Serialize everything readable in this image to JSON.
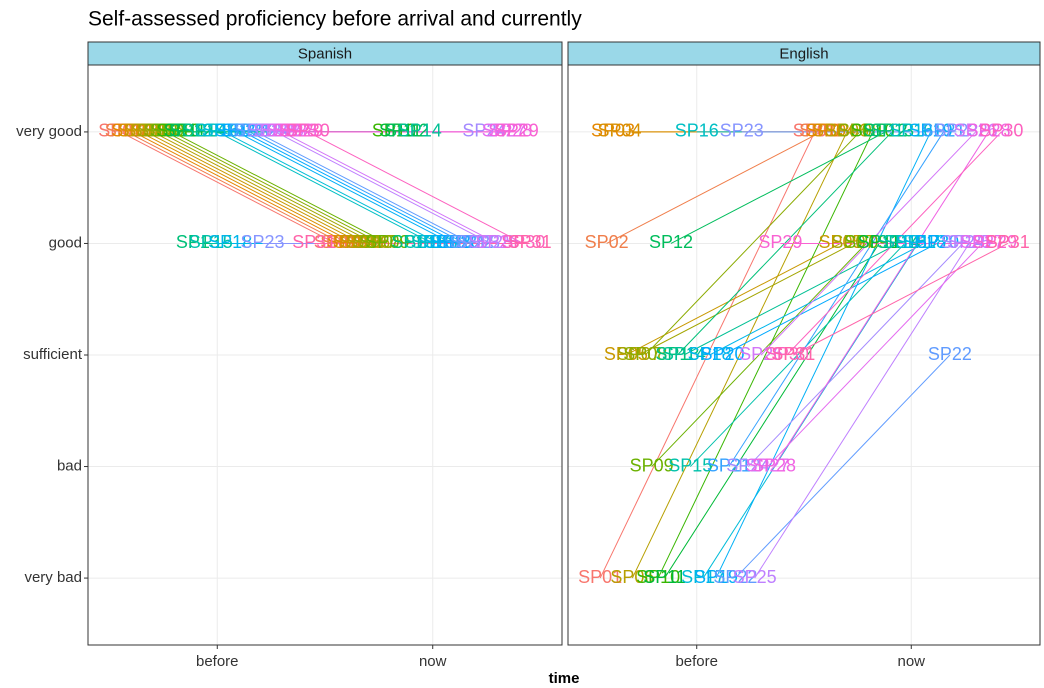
{
  "chart_data": {
    "type": "slope",
    "title": "Self-assessed proficiency before arrival and currently",
    "x_label": "time",
    "categories": [
      "before",
      "now"
    ],
    "ylim": [
      0.4,
      5.6
    ],
    "yticks": [
      {
        "value": 1,
        "label": "very bad"
      },
      {
        "value": 2,
        "label": "bad"
      },
      {
        "value": 3,
        "label": "sufficient"
      },
      {
        "value": 4,
        "label": "good"
      },
      {
        "value": 5,
        "label": "very good"
      }
    ],
    "grid": true,
    "facets": [
      {
        "label": "Spanish",
        "series": [
          {
            "name": "SP01",
            "color": "#F8766D",
            "values": [
              5,
              4
            ]
          },
          {
            "name": "SP02",
            "color": "#F07E4B",
            "values": [
              5,
              4
            ]
          },
          {
            "name": "SP03",
            "color": "#E58700",
            "values": [
              5,
              4
            ]
          },
          {
            "name": "SP04",
            "color": "#D89000",
            "values": [
              5,
              4
            ]
          },
          {
            "name": "SP05",
            "color": "#C99800",
            "values": [
              5,
              4
            ]
          },
          {
            "name": "SP06",
            "color": "#B79F00",
            "values": [
              5,
              4
            ]
          },
          {
            "name": "SP07",
            "color": "#A3A500",
            "values": [
              5,
              4
            ]
          },
          {
            "name": "SP08",
            "color": "#8BAB00",
            "values": [
              5,
              4
            ]
          },
          {
            "name": "SP09",
            "color": "#6BB100",
            "values": [
              5,
              4
            ]
          },
          {
            "name": "SP10",
            "color": "#39B600",
            "values": [
              5,
              5
            ]
          },
          {
            "name": "SP11",
            "color": "#00BA38",
            "values": [
              5,
              5
            ]
          },
          {
            "name": "SP12",
            "color": "#00BD5C",
            "values": [
              5,
              5
            ]
          },
          {
            "name": "SP13",
            "color": "#00C079",
            "values": [
              4,
              4
            ]
          },
          {
            "name": "SP14",
            "color": "#00C094",
            "values": [
              5,
              5
            ]
          },
          {
            "name": "SP15",
            "color": "#00C1AB",
            "values": [
              4,
              4
            ]
          },
          {
            "name": "SP16",
            "color": "#00BFC4",
            "values": [
              5,
              4
            ]
          },
          {
            "name": "SP17",
            "color": "#00BCD8",
            "values": [
              5,
              4
            ]
          },
          {
            "name": "SP18",
            "color": "#00B6EB",
            "values": [
              4,
              4
            ]
          },
          {
            "name": "SP19",
            "color": "#00B0F6",
            "values": [
              5,
              4
            ]
          },
          {
            "name": "SP20",
            "color": "#00A9FF",
            "values": [
              5,
              4
            ]
          },
          {
            "name": "SP21",
            "color": "#35A2FF",
            "values": [
              5,
              4
            ]
          },
          {
            "name": "SP22",
            "color": "#619CFF",
            "values": [
              5,
              4
            ]
          },
          {
            "name": "SP23",
            "color": "#8795FF",
            "values": [
              4,
              4
            ]
          },
          {
            "name": "SP24",
            "color": "#A58AFF",
            "values": [
              5,
              5
            ]
          },
          {
            "name": "SP25",
            "color": "#BF80FF",
            "values": [
              5,
              4
            ]
          },
          {
            "name": "SP26",
            "color": "#D376F8",
            "values": [
              5,
              4
            ]
          },
          {
            "name": "SP27",
            "color": "#E46BF0",
            "values": [
              5,
              5
            ]
          },
          {
            "name": "SP28",
            "color": "#F063E3",
            "values": [
              5,
              5
            ]
          },
          {
            "name": "SP29",
            "color": "#F962D2",
            "values": [
              5,
              5
            ]
          },
          {
            "name": "SP30",
            "color": "#FD61BF",
            "values": [
              5,
              4
            ]
          },
          {
            "name": "SP31",
            "color": "#FF64A9",
            "values": [
              4,
              4
            ]
          }
        ]
      },
      {
        "label": "English",
        "series": [
          {
            "name": "SP01",
            "color": "#F8766D",
            "values": [
              1,
              5
            ]
          },
          {
            "name": "SP02",
            "color": "#F07E4B",
            "values": [
              4,
              5
            ]
          },
          {
            "name": "SP03",
            "color": "#E58700",
            "values": [
              5,
              5
            ]
          },
          {
            "name": "SP04",
            "color": "#D89000",
            "values": [
              5,
              5
            ]
          },
          {
            "name": "SP05",
            "color": "#C99800",
            "values": [
              3,
              4
            ]
          },
          {
            "name": "SP06",
            "color": "#B79F00",
            "values": [
              1,
              5
            ]
          },
          {
            "name": "SP07",
            "color": "#A3A500",
            "values": [
              3,
              4
            ]
          },
          {
            "name": "SP08",
            "color": "#8BAB00",
            "values": [
              3,
              5
            ]
          },
          {
            "name": "SP09",
            "color": "#6BB100",
            "values": [
              2,
              4
            ]
          },
          {
            "name": "SP10",
            "color": "#39B600",
            "values": [
              1,
              5
            ]
          },
          {
            "name": "SP11",
            "color": "#00BA38",
            "values": [
              1,
              4
            ]
          },
          {
            "name": "SP12",
            "color": "#00BD5C",
            "values": [
              4,
              5
            ]
          },
          {
            "name": "SP13",
            "color": "#00C079",
            "values": [
              3,
              5
            ]
          },
          {
            "name": "SP14",
            "color": "#00C094",
            "values": [
              3,
              4
            ]
          },
          {
            "name": "SP15",
            "color": "#00C1AB",
            "values": [
              2,
              4
            ]
          },
          {
            "name": "SP16",
            "color": "#00BFC4",
            "values": [
              5,
              5
            ]
          },
          {
            "name": "SP17",
            "color": "#00BCD8",
            "values": [
              1,
              4
            ]
          },
          {
            "name": "SP18",
            "color": "#00B6EB",
            "values": [
              3,
              4
            ]
          },
          {
            "name": "SP19",
            "color": "#00B0F6",
            "values": [
              1,
              5
            ]
          },
          {
            "name": "SP20",
            "color": "#00A9FF",
            "values": [
              3,
              4
            ]
          },
          {
            "name": "SP21",
            "color": "#35A2FF",
            "values": [
              2,
              5
            ]
          },
          {
            "name": "SP22",
            "color": "#619CFF",
            "values": [
              1,
              3
            ]
          },
          {
            "name": "SP23",
            "color": "#8795FF",
            "values": [
              5,
              5
            ]
          },
          {
            "name": "SP24",
            "color": "#A58AFF",
            "values": [
              2,
              4
            ]
          },
          {
            "name": "SP25",
            "color": "#BF80FF",
            "values": [
              1,
              4
            ]
          },
          {
            "name": "SP26",
            "color": "#D376F8",
            "values": [
              3,
              5
            ]
          },
          {
            "name": "SP27",
            "color": "#E46BF0",
            "values": [
              2,
              4
            ]
          },
          {
            "name": "SP28",
            "color": "#F063E3",
            "values": [
              2,
              5
            ]
          },
          {
            "name": "SP29",
            "color": "#F962D2",
            "values": [
              4,
              4
            ]
          },
          {
            "name": "SP30",
            "color": "#FD61BF",
            "values": [
              3,
              5
            ]
          },
          {
            "name": "SP31",
            "color": "#FF64A9",
            "values": [
              3,
              4
            ]
          }
        ]
      }
    ]
  }
}
